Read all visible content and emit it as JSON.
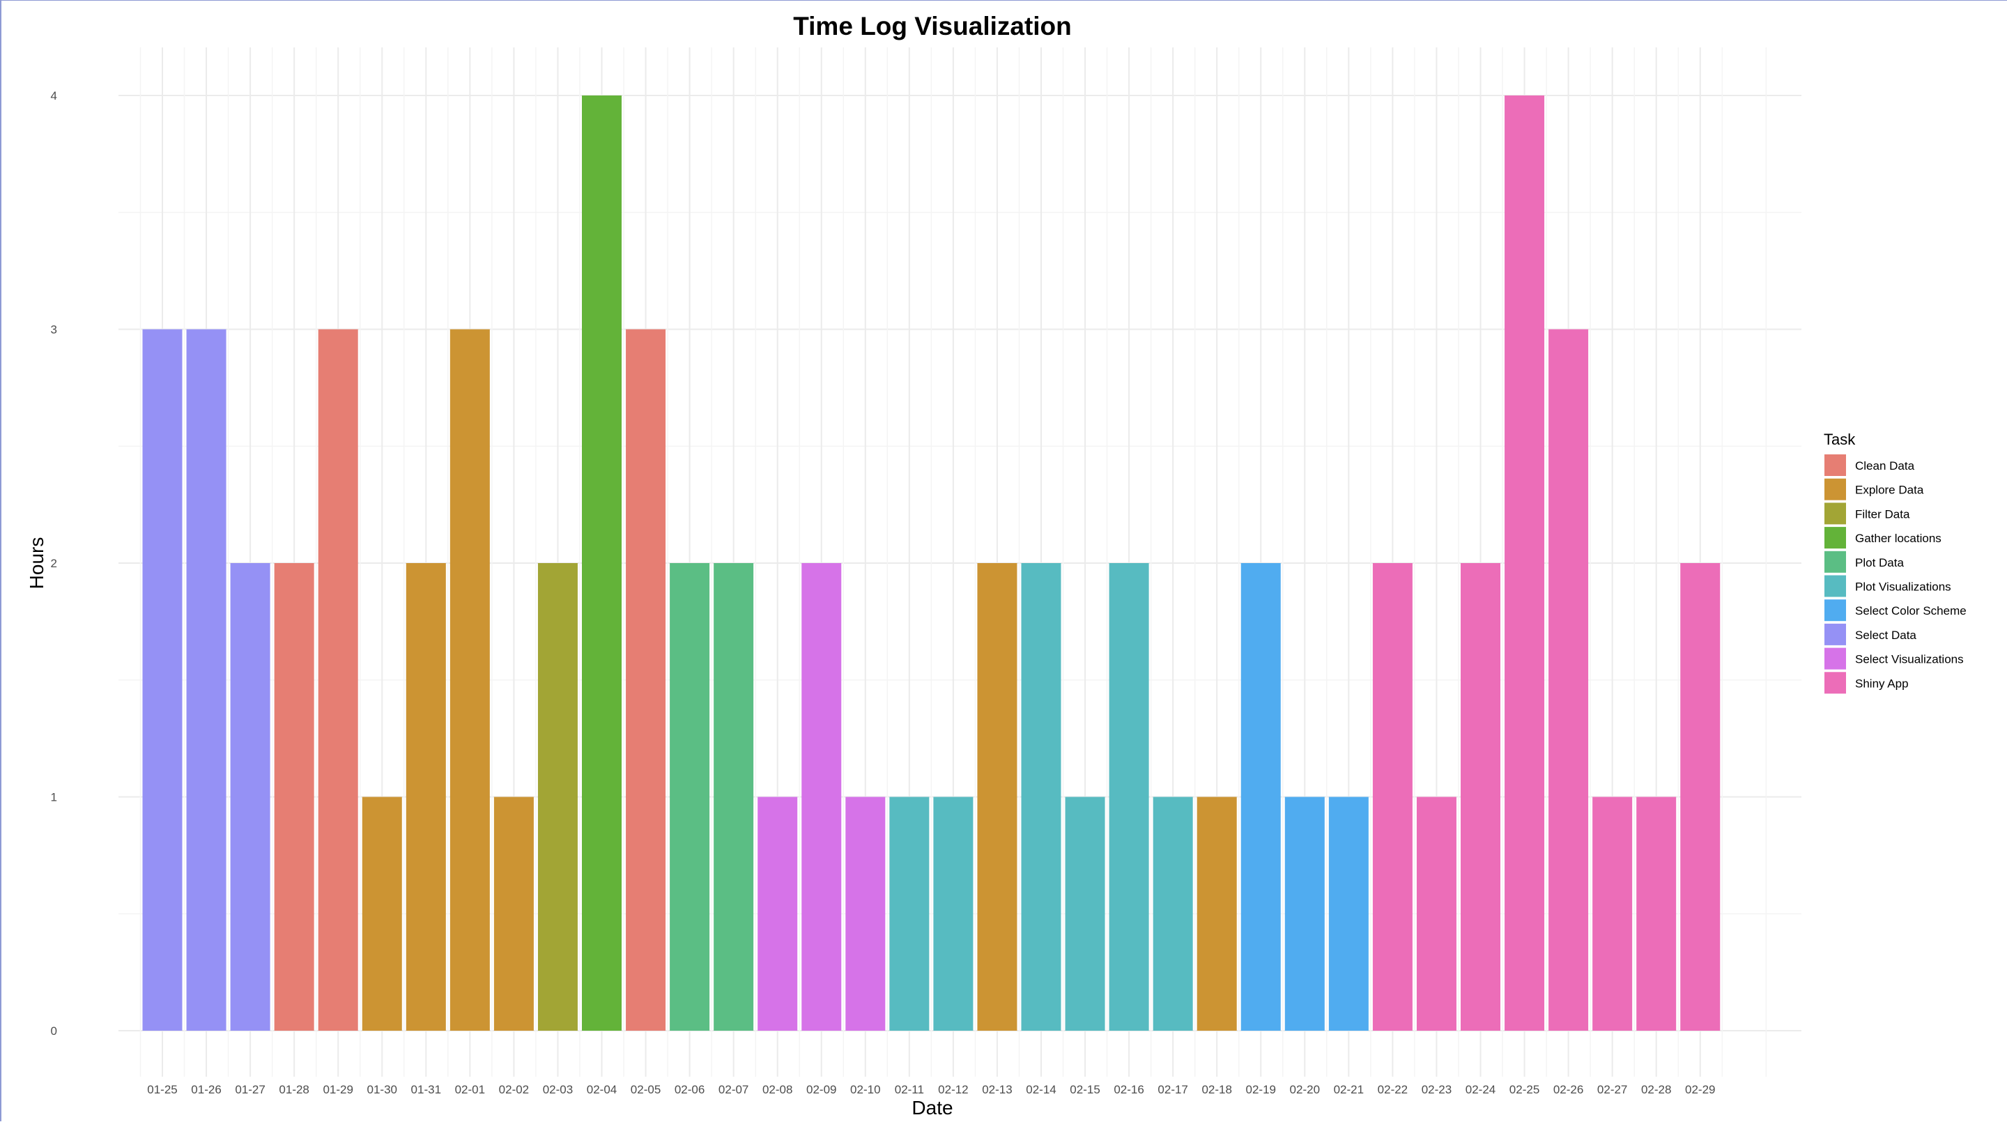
{
  "chart_data": {
    "type": "bar",
    "title": "Time Log Visualization",
    "xlabel": "Date",
    "ylabel": "Hours",
    "ylim": [
      0,
      4
    ],
    "yticks": [
      "0",
      "1",
      "2",
      "3",
      "4"
    ],
    "grid": true,
    "legend_title": "Task",
    "legend_position": "right",
    "legend": [
      {
        "name": "Clean Data",
        "color": "#E67E73"
      },
      {
        "name": "Explore Data",
        "color": "#CC9433"
      },
      {
        "name": "Filter Data",
        "color": "#A2A535"
      },
      {
        "name": "Gather locations",
        "color": "#63B339"
      },
      {
        "name": "Plot Data",
        "color": "#5BBE84"
      },
      {
        "name": "Plot Visualizations",
        "color": "#57BBC1"
      },
      {
        "name": "Select Color Scheme",
        "color": "#50ACF0"
      },
      {
        "name": "Select Data",
        "color": "#9591F5"
      },
      {
        "name": "Select Visualizations",
        "color": "#D673E8"
      },
      {
        "name": "Shiny App",
        "color": "#EC6DB8"
      }
    ],
    "categories": [
      "01-25",
      "01-26",
      "01-27",
      "01-28",
      "01-29",
      "01-30",
      "01-31",
      "02-01",
      "02-02",
      "02-03",
      "02-04",
      "02-05",
      "02-06",
      "02-07",
      "02-08",
      "02-09",
      "02-10",
      "02-11",
      "02-12",
      "02-13",
      "02-14",
      "02-15",
      "02-16",
      "02-17",
      "02-18",
      "02-19",
      "02-20",
      "02-21",
      "02-22",
      "02-23",
      "02-24",
      "02-25",
      "02-26",
      "02-27",
      "02-28",
      "02-29"
    ],
    "values": [
      3,
      3,
      2,
      2,
      3,
      1,
      2,
      3,
      1,
      2,
      4,
      3,
      2,
      2,
      1,
      2,
      1,
      1,
      1,
      2,
      2,
      1,
      2,
      1,
      1,
      2,
      1,
      1,
      2,
      1,
      2,
      4,
      3,
      1,
      1,
      2
    ],
    "tasks": [
      "Select Data",
      "Select Data",
      "Select Data",
      "Clean Data",
      "Clean Data",
      "Explore Data",
      "Explore Data",
      "Explore Data",
      "Explore Data",
      "Filter Data",
      "Gather locations",
      "Clean Data",
      "Plot Data",
      "Plot Data",
      "Select Visualizations",
      "Select Visualizations",
      "Select Visualizations",
      "Plot Visualizations",
      "Plot Visualizations",
      "Explore Data",
      "Plot Visualizations",
      "Plot Visualizations",
      "Plot Visualizations",
      "Plot Visualizations",
      "Explore Data",
      "Select Color Scheme",
      "Select Color Scheme",
      "Select Color Scheme",
      "Shiny App",
      "Shiny App",
      "Shiny App",
      "Shiny App",
      "Shiny App",
      "Shiny App",
      "Shiny App",
      "Shiny App"
    ]
  }
}
